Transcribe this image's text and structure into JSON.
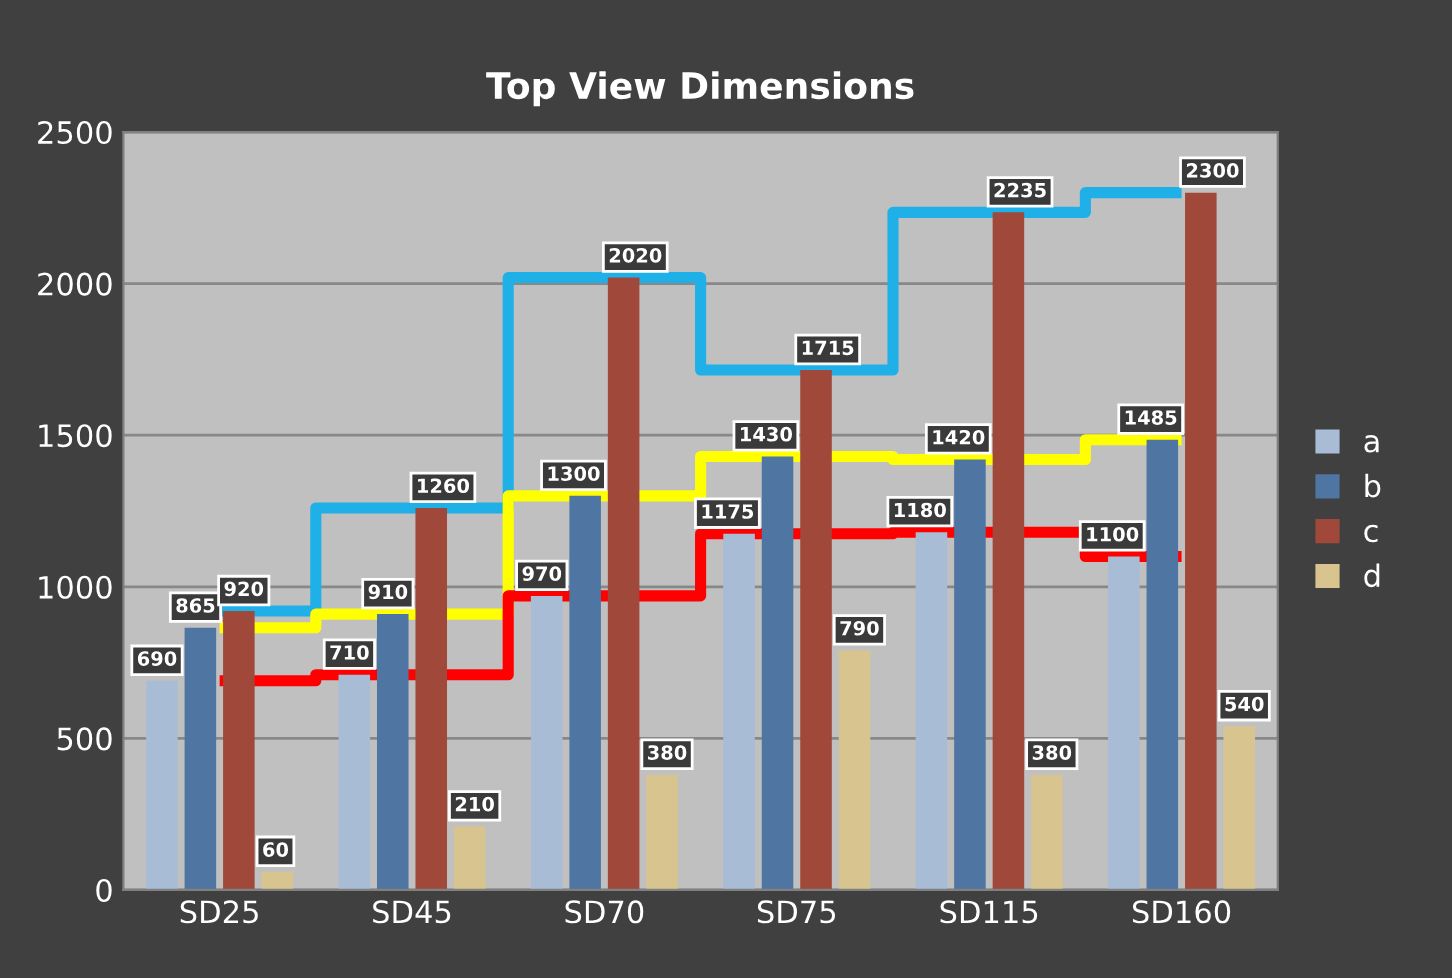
{
  "chart_data": {
    "type": "bar",
    "title": "Top View Dimensions",
    "categories": [
      "SD25",
      "SD45",
      "SD70",
      "SD75",
      "SD115",
      "SD160"
    ],
    "series": [
      {
        "name": "a",
        "color": "#a9bcd6",
        "values": [
          690,
          710,
          970,
          1175,
          1180,
          1100
        ],
        "value_labels": [
          "690",
          "710",
          "970",
          "1175",
          "1180",
          "1100"
        ]
      },
      {
        "name": "b",
        "color": "#4f76a3",
        "values": [
          865,
          910,
          1300,
          1430,
          1420,
          1485
        ],
        "value_labels": [
          "865",
          "910",
          "1300",
          "1430",
          "1420",
          "1485"
        ]
      },
      {
        "name": "c",
        "color": "#a0483a",
        "values": [
          920,
          1260,
          2020,
          1715,
          2235,
          2300
        ],
        "value_labels": [
          "920",
          "1260",
          "2020",
          "1715",
          "2235",
          "2300"
        ]
      },
      {
        "name": "d",
        "color": "#d8c48e",
        "values": [
          60,
          210,
          380,
          790,
          380,
          540
        ],
        "value_labels": [
          "60",
          "210",
          "380",
          "790",
          "380",
          "540"
        ]
      },
      {
        "type": "step",
        "color": "#1fb0e8",
        "values": [
          920,
          1260,
          2020,
          1715,
          2235,
          2300
        ]
      },
      {
        "type": "step",
        "color": "#ffff00",
        "values": [
          865,
          910,
          1300,
          1430,
          1420,
          1485
        ]
      },
      {
        "type": "step",
        "color": "#ff0000",
        "values": [
          690,
          710,
          970,
          1175,
          1180,
          1100
        ]
      }
    ],
    "ylim": [
      0,
      2500
    ],
    "yticks": [
      0,
      500,
      1000,
      1500,
      2000,
      2500
    ],
    "grid": "y",
    "legend": "right"
  }
}
